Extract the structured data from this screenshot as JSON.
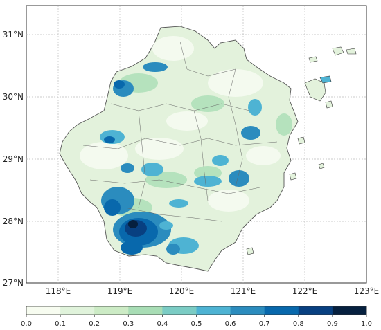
{
  "map": {
    "lat_labels": [
      "31°N",
      "30°N",
      "29°N",
      "28°N",
      "27°N"
    ],
    "lon_labels": [
      "118°E",
      "119°E",
      "120°E",
      "121°E",
      "122°E",
      "123°E"
    ],
    "lat_range": [
      27,
      31.45
    ],
    "lon_range": [
      117.5,
      123
    ],
    "gridlines": true
  },
  "colorbar": {
    "tick_labels": [
      "0.0",
      "0.1",
      "0.2",
      "0.3",
      "0.4",
      "0.5",
      "0.6",
      "0.7",
      "0.8",
      "0.9",
      "1.0"
    ],
    "colors": [
      "#f7fcf0",
      "#e0f3db",
      "#ccebc5",
      "#a8ddb5",
      "#7bccc4",
      "#4eb3d3",
      "#2b8cbe",
      "#0868ac",
      "#084081",
      "#06203f"
    ]
  }
}
